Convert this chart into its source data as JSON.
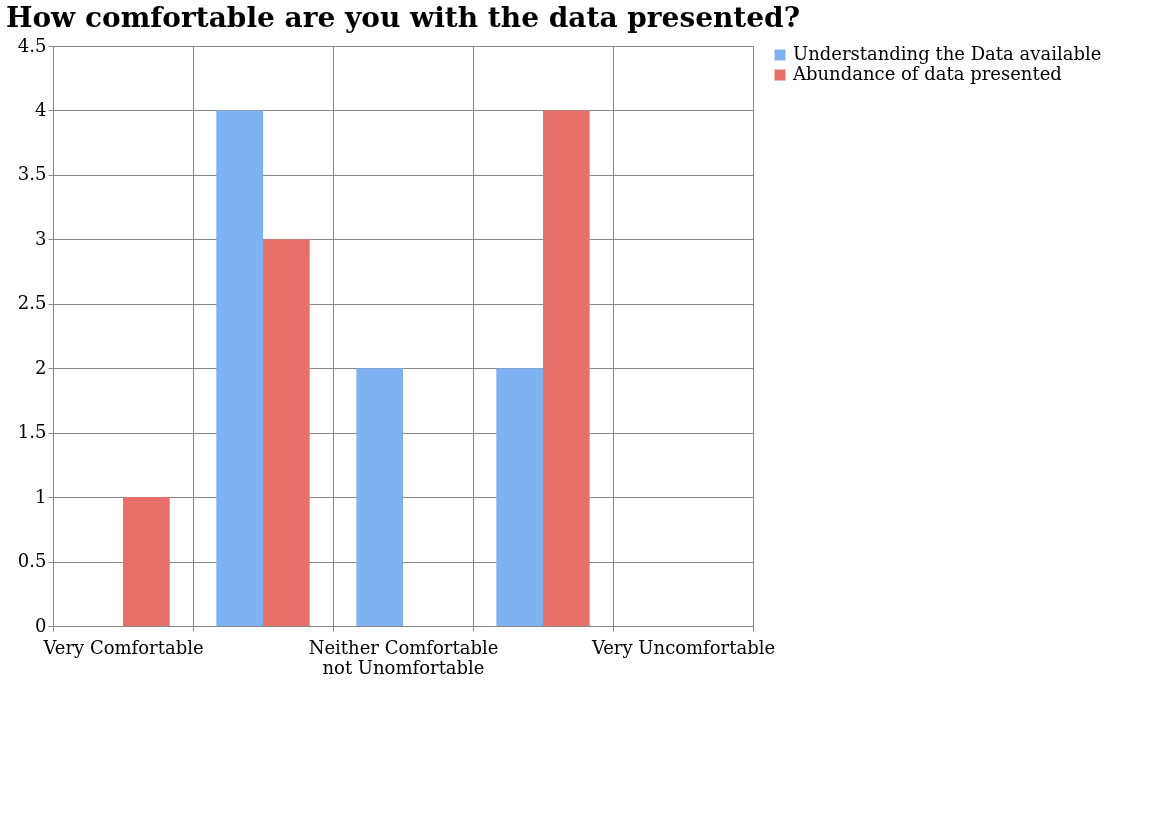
{
  "chart_data": {
    "type": "bar",
    "title": "How comfortable are you with the data presented?",
    "categories": [
      "Very Comfortable",
      null,
      "Neither Comfortable not Unomfortable",
      null,
      "Very Uncomfortable"
    ],
    "series": [
      {
        "name": "Understanding the Data available",
        "color": "#7fb2f0",
        "values": [
          0,
          4,
          2,
          2,
          0
        ]
      },
      {
        "name": "Abundance of data presented",
        "color": "#e8706a",
        "values": [
          1,
          3,
          0,
          4,
          0
        ]
      }
    ],
    "ylim": [
      0,
      4.5
    ],
    "yticks": [
      0,
      0.5,
      1,
      1.5,
      2,
      2.5,
      3,
      3.5,
      4,
      4.5
    ],
    "grid": true,
    "legend": "right"
  }
}
